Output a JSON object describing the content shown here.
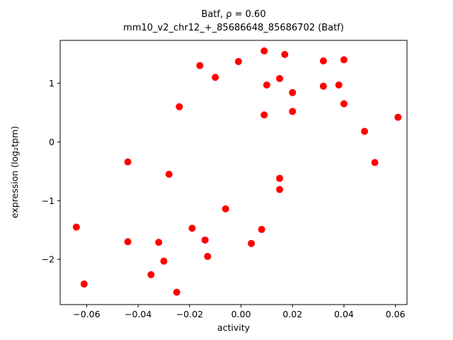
{
  "chart_data": {
    "type": "scatter",
    "title": "Batf, ρ = 0.60",
    "subtitle": "mm10_v2_chr12_+_85686648_85686702 (Batf)",
    "xlabel": "activity",
    "ylabel": "expression (log₂tpm)",
    "marker_color": "#ff0000",
    "marker_radius": 5,
    "grid": false,
    "legend": "none",
    "xlim": [
      -0.0703,
      0.0645
    ],
    "ylim": [
      -2.77,
      1.73
    ],
    "xticks": [
      {
        "v": -0.06,
        "label": "−0.06"
      },
      {
        "v": -0.04,
        "label": "−0.04"
      },
      {
        "v": -0.02,
        "label": "−0.02"
      },
      {
        "v": 0.0,
        "label": "0.00"
      },
      {
        "v": 0.02,
        "label": "0.02"
      },
      {
        "v": 0.04,
        "label": "0.04"
      },
      {
        "v": 0.06,
        "label": "0.06"
      }
    ],
    "yticks": [
      {
        "v": -2,
        "label": "−2"
      },
      {
        "v": -1,
        "label": "−1"
      },
      {
        "v": 0,
        "label": "0"
      },
      {
        "v": 1,
        "label": "1"
      }
    ],
    "points": [
      [
        -0.064,
        -1.45
      ],
      [
        -0.061,
        -2.42
      ],
      [
        -0.044,
        -0.34
      ],
      [
        -0.044,
        -1.7
      ],
      [
        -0.035,
        -2.26
      ],
      [
        -0.032,
        -1.71
      ],
      [
        -0.03,
        -2.03
      ],
      [
        -0.028,
        -0.55
      ],
      [
        -0.025,
        -2.56
      ],
      [
        -0.024,
        0.6
      ],
      [
        -0.019,
        -1.47
      ],
      [
        -0.016,
        1.3
      ],
      [
        -0.014,
        -1.67
      ],
      [
        -0.013,
        -1.95
      ],
      [
        -0.01,
        1.1
      ],
      [
        -0.006,
        -1.14
      ],
      [
        -0.001,
        1.37
      ],
      [
        0.004,
        -1.73
      ],
      [
        0.008,
        -1.49
      ],
      [
        0.009,
        1.55
      ],
      [
        0.009,
        0.46
      ],
      [
        0.01,
        0.97
      ],
      [
        0.015,
        1.08
      ],
      [
        0.015,
        -0.62
      ],
      [
        0.015,
        -0.81
      ],
      [
        0.017,
        1.49
      ],
      [
        0.02,
        0.84
      ],
      [
        0.02,
        0.52
      ],
      [
        0.032,
        0.95
      ],
      [
        0.032,
        1.38
      ],
      [
        0.038,
        0.97
      ],
      [
        0.04,
        1.4
      ],
      [
        0.04,
        0.65
      ],
      [
        0.048,
        0.18
      ],
      [
        0.052,
        -0.35
      ],
      [
        0.061,
        0.42
      ]
    ]
  }
}
